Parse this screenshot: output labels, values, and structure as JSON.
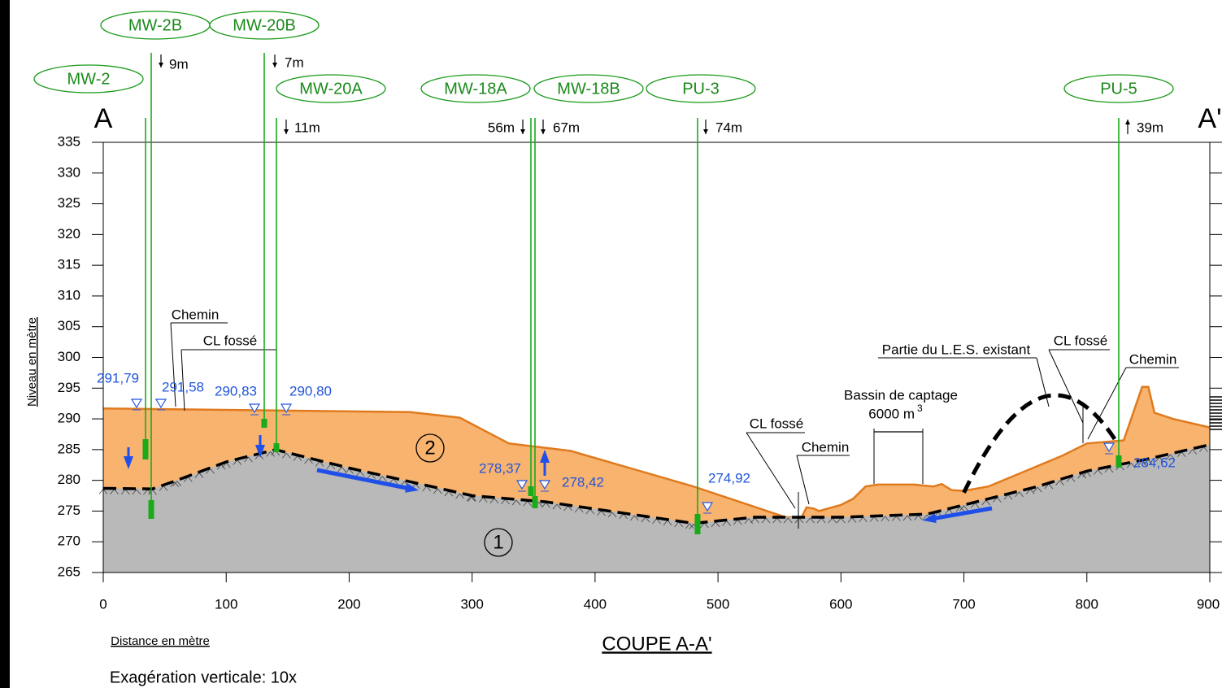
{
  "header": {
    "section_start": "A",
    "section_end": "A'"
  },
  "wells": [
    {
      "label": "MW-2B"
    },
    {
      "label": "MW-20B"
    },
    {
      "label": "MW-2"
    },
    {
      "label": "MW-20A"
    },
    {
      "label": "MW-18A"
    },
    {
      "label": "MW-18B"
    },
    {
      "label": "PU-3"
    },
    {
      "label": "PU-5"
    }
  ],
  "depths": [
    "9m",
    "7m",
    "11m",
    "56m",
    "67m",
    "74m",
    "39m"
  ],
  "water_levels": [
    "291,79",
    "291,58",
    "290,83",
    "290,80",
    "278,37",
    "278,42",
    "274,92",
    "284,62"
  ],
  "annotations": {
    "chemin_1": "Chemin",
    "cl_fosse_1": "CL fossé",
    "cl_fosse_2": "CL fossé",
    "chemin_2": "Chemin",
    "bassin": "Bassin de captage",
    "bassin_volume": "6000 m",
    "bassin_volume_exp": "3",
    "les": "Partie du L.E.S. existant",
    "cl_fosse_3": "CL fossé",
    "chemin_3": "Chemin"
  },
  "units": [
    "2",
    "1"
  ],
  "axes": {
    "y_title": "Niveau en mètre",
    "x_title": "Distance en mètre",
    "yticks": [
      335,
      330,
      325,
      320,
      315,
      310,
      305,
      300,
      295,
      290,
      285,
      280,
      275,
      270,
      265
    ],
    "xticks": [
      0,
      100,
      200,
      300,
      400,
      500,
      600,
      700,
      800,
      900
    ]
  },
  "footer": {
    "title": "COUPE A-A'",
    "note": "Exagération verticale: 10x"
  }
}
